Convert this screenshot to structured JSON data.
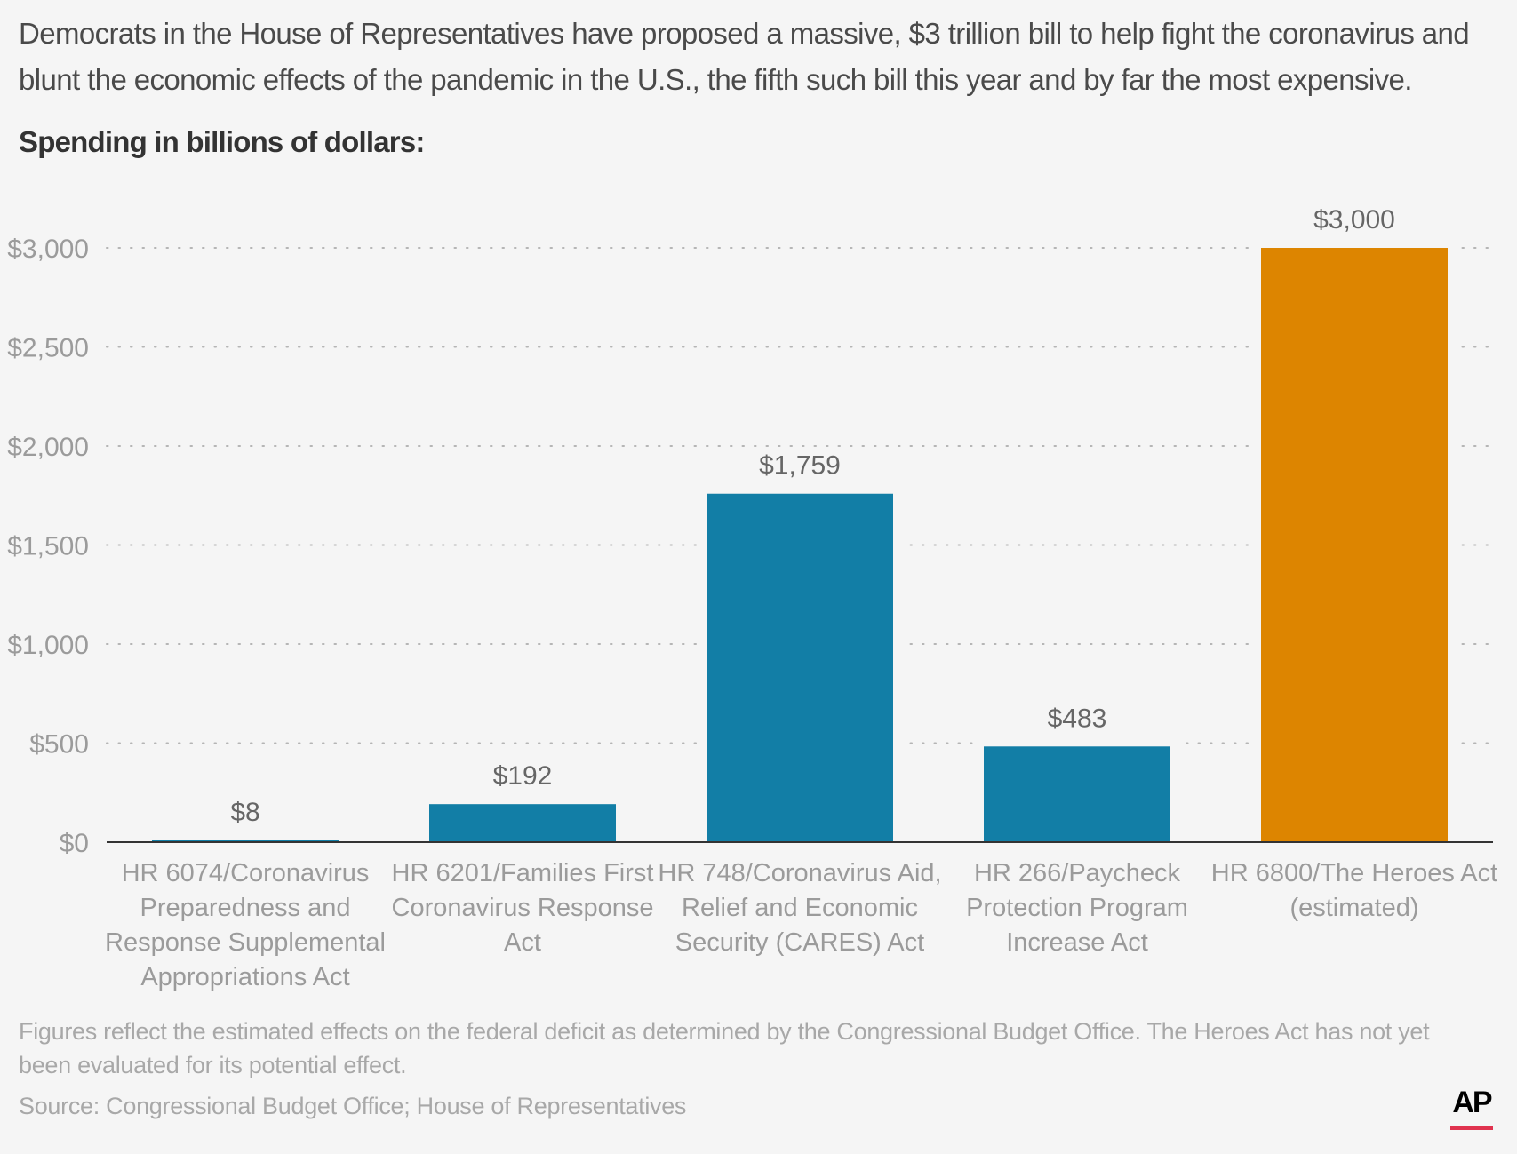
{
  "intro": "Democrats in the House of Representatives have proposed a massive, $3 trillion bill to help fight the coronavirus and blunt the economic effects of the pandemic in the U.S., the fifth such bill this year and by far the most expensive.",
  "subtitle": "Spending in billions of dollars:",
  "chart_data": {
    "type": "bar",
    "title": "Spending in billions of dollars:",
    "xlabel": "",
    "ylabel": "",
    "ylim": [
      0,
      3000
    ],
    "yticks": [
      0,
      500,
      1000,
      1500,
      2000,
      2500,
      3000
    ],
    "ytick_labels": [
      "$0",
      "$500",
      "$1,000",
      "$1,500",
      "$2,000",
      "$2,500",
      "$3,000"
    ],
    "grid": true,
    "categories": [
      [
        "HR 6074/Coronavirus",
        "Preparedness and",
        "Response Supplemental",
        "Appropriations Act"
      ],
      [
        "HR 6201/Families First",
        "Coronavirus Response",
        "Act"
      ],
      [
        "HR 748/Coronavirus Aid,",
        "Relief and Economic",
        "Security (CARES) Act"
      ],
      [
        "HR 266/Paycheck",
        "Protection Program",
        "Increase Act"
      ],
      [
        "HR 6800/The Heroes Act",
        "(estimated)"
      ]
    ],
    "values": [
      8,
      192,
      1759,
      483,
      3000
    ],
    "value_labels": [
      "$8",
      "$192",
      "$1,759",
      "$483",
      "$3,000"
    ],
    "colors": [
      "#127ea6",
      "#127ea6",
      "#127ea6",
      "#127ea6",
      "#dd8500"
    ]
  },
  "footnote": "Figures reflect the estimated effects on the federal deficit as determined by the Congressional Budget Office. The Heroes Act has not yet been evaluated for its potential effect.",
  "source": "Source: Congressional Budget Office; House of Representatives",
  "logo": "AP",
  "colors": {
    "primary_bar": "#127ea6",
    "highlight_bar": "#dd8500",
    "logo_accent": "#e0334f"
  }
}
